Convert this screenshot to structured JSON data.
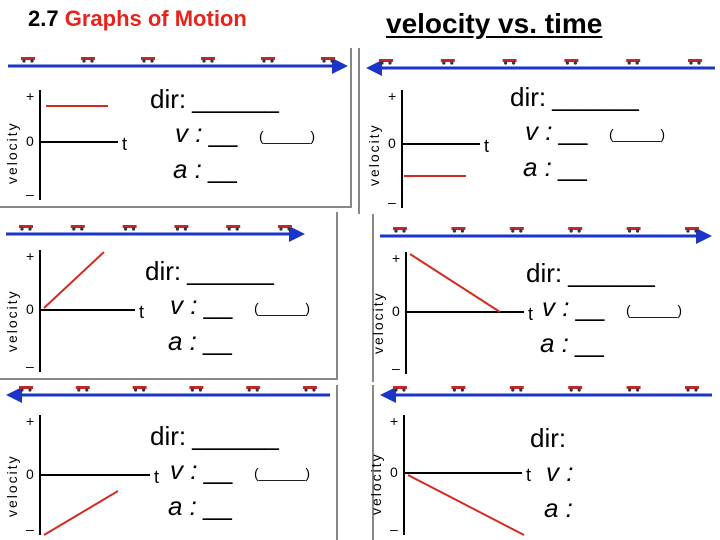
{
  "header": {
    "number": "2.7",
    "topic": "Graphs of Motion",
    "subtitle": "velocity vs. time"
  },
  "axis": {
    "ylabel": "velocity",
    "xlabel": "t",
    "plus": "+",
    "zero": "0",
    "minus": "–"
  },
  "prompts": {
    "dir": "dir:",
    "dir_blank": "______",
    "v": "v :",
    "v_blank": "__",
    "paren": "(______)",
    "a": "a :",
    "a_blank": "__"
  },
  "colors": {
    "title_red": "#e8231b",
    "arrow_blue": "#1a35c7",
    "line_red": "#d42a22",
    "car_red": "#c0282a"
  },
  "panels": [
    {
      "id": "p1",
      "arrow": "right",
      "line": "constant-positive"
    },
    {
      "id": "p2",
      "arrow": "left",
      "line": "constant-negative"
    },
    {
      "id": "p3",
      "arrow": "right",
      "line": "increasing-positive"
    },
    {
      "id": "p4",
      "arrow": "right",
      "line": "decreasing-positive"
    },
    {
      "id": "p5",
      "arrow": "left",
      "line": "decreasing-negative"
    },
    {
      "id": "p6",
      "arrow": "left",
      "line": "increasing-negative"
    }
  ]
}
